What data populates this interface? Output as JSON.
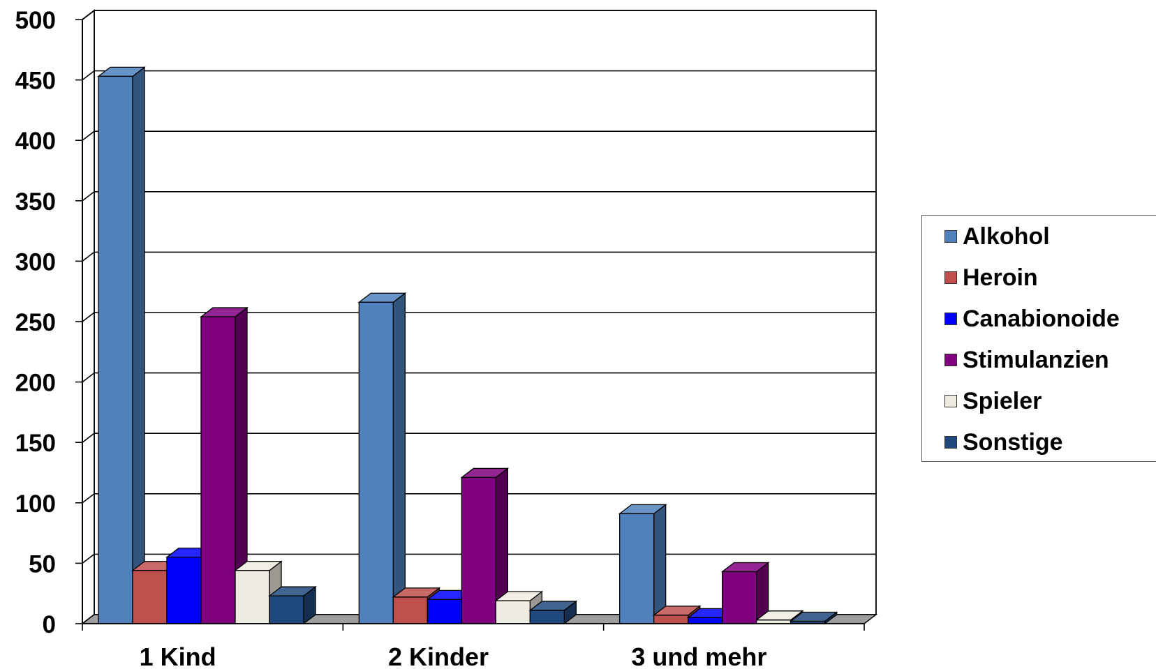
{
  "chart_data": {
    "type": "bar",
    "style": "3d-clustered-column",
    "categories": [
      "1 Kind",
      "2 Kinder",
      "3 und mehr"
    ],
    "series": [
      {
        "name": "Alkohol",
        "color": "#4F81BD",
        "values": [
          453,
          266,
          91
        ]
      },
      {
        "name": "Heroin",
        "color": "#C0504D",
        "values": [
          44,
          22,
          7
        ]
      },
      {
        "name": "Canabionoide",
        "color": "#0000FF",
        "values": [
          55,
          20,
          5
        ]
      },
      {
        "name": "Stimulanzien",
        "color": "#800080",
        "values": [
          254,
          121,
          43
        ]
      },
      {
        "name": "Spieler",
        "color": "#EEECE1",
        "values": [
          44,
          19,
          3
        ]
      },
      {
        "name": "Sonstige",
        "color": "#1F497D",
        "values": [
          23,
          11,
          2
        ]
      }
    ],
    "yticks": [
      "0",
      "50",
      "100",
      "150",
      "200",
      "250",
      "300",
      "350",
      "400",
      "450",
      "500"
    ],
    "ylim": [
      0,
      500
    ],
    "grid": true,
    "legend_position": "right"
  }
}
